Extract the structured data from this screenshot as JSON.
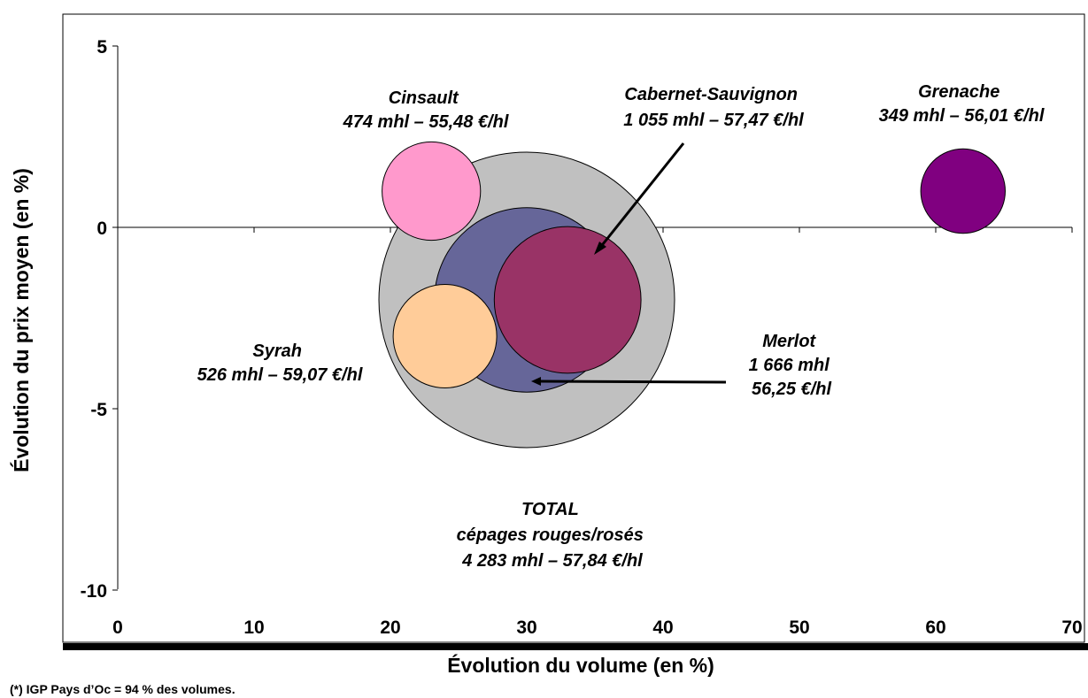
{
  "chart_data": {
    "type": "bubble",
    "xlabel": "Évolution du volume (en %)",
    "ylabel": "Évolution du prix moyen (en %)",
    "xlim": [
      0,
      70
    ],
    "ylim": [
      -10,
      5
    ],
    "x_ticks": [
      "0",
      "10",
      "20",
      "30",
      "40",
      "50",
      "60",
      "70"
    ],
    "y_ticks": [
      "5",
      "0",
      "-5",
      "-10"
    ],
    "grid": false,
    "series": [
      {
        "name": "TOTAL",
        "x": 30,
        "y": -2,
        "size_mhl": 4283,
        "color": "#C0C0C0",
        "label_lines": [
          "TOTAL",
          "cépages rouges/rosés",
          "4 283 mhl – 57,84 €/hl"
        ]
      },
      {
        "name": "Merlot",
        "x": 30,
        "y": -2,
        "size_mhl": 1666,
        "color": "#666699",
        "label_lines": [
          "Merlot",
          "1 666 mhl",
          "56,25 €/hl"
        ]
      },
      {
        "name": "Cabernet-Sauvignon",
        "x": 33,
        "y": -2,
        "size_mhl": 1055,
        "color": "#993366",
        "label_lines": [
          "Cabernet-Sauvignon",
          "1 055 mhl – 57,47 €/hl"
        ]
      },
      {
        "name": "Syrah",
        "x": 24,
        "y": -3,
        "size_mhl": 526,
        "color": "#FFCC99",
        "label_lines": [
          "Syrah",
          "526 mhl – 59,07 €/hl"
        ]
      },
      {
        "name": "Cinsault",
        "x": 23,
        "y": 1,
        "size_mhl": 474,
        "color": "#FF99CC",
        "label_lines": [
          "Cinsault",
          "474 mhl – 55,48 €/hl"
        ]
      },
      {
        "name": "Grenache",
        "x": 62,
        "y": 1,
        "size_mhl": 349,
        "color": "#800080",
        "label_lines": [
          "Grenache",
          "349 mhl – 56,01 €/hl"
        ]
      }
    ]
  },
  "footnote": "(*) IGP Pays d’Oc = 94 % des volumes."
}
